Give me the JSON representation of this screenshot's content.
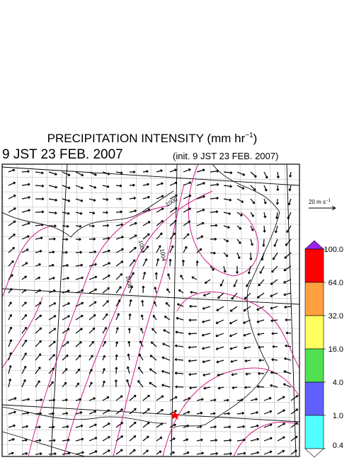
{
  "header": {
    "title": "PRECIPITATION INTENSITY (mm hr",
    "title_exponent": "−1",
    "title_close": ")",
    "valid_time": "9 JST 23 FEB. 2007",
    "init_time": "(init. 9 JST 23 FEB. 2007)"
  },
  "vector_scale": {
    "label": "20 m s",
    "exponent": "−1"
  },
  "contour_labels": [
    "1000",
    "1004",
    "1004",
    "1008"
  ],
  "colorbar": {
    "ticks": [
      {
        "value": 100,
        "label": "100.0"
      },
      {
        "value": 64,
        "label": "64.0"
      },
      {
        "value": 32,
        "label": "32.0"
      },
      {
        "value": 16,
        "label": "16.0"
      },
      {
        "value": 4,
        "label": "4.0"
      },
      {
        "value": 1,
        "label": "1.0"
      },
      0.4
    ],
    "colors": [
      "#a020f0",
      "#ff0000",
      "#ffa040",
      "#ffff60",
      "#50e050",
      "#6060ff",
      "#50ffff",
      "#ffffff"
    ]
  }
}
